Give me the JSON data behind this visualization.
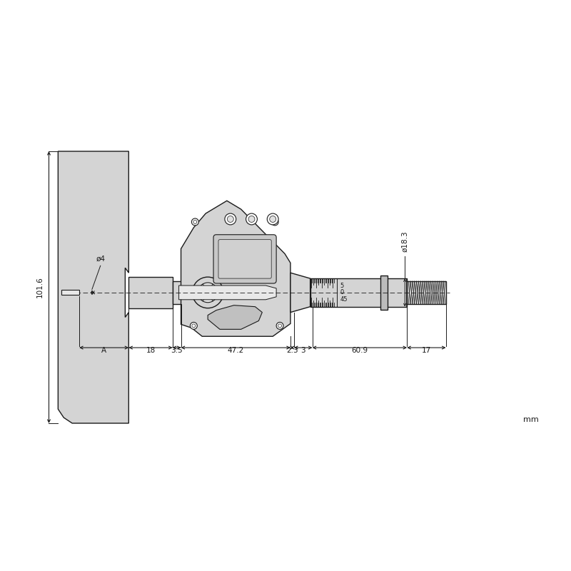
{
  "bg_color": "#ffffff",
  "line_color": "#1a1a1a",
  "fill_color": "#d4d4d4",
  "fill_light": "#e8e8e8",
  "unit_label": "mm",
  "dims": {
    "A_label": "A",
    "d18": "18",
    "d35": "3.5",
    "d472": "47.2",
    "d23": "2.3",
    "d3": "3",
    "d609": "60.9",
    "d17": "17",
    "h1016": "101.6",
    "dia4": "ø4",
    "dia183": "ø18.3"
  },
  "thimble_labels": [
    "45",
    "0",
    "5"
  ],
  "figsize": [
    8.0,
    8.0
  ],
  "dpi": 100
}
